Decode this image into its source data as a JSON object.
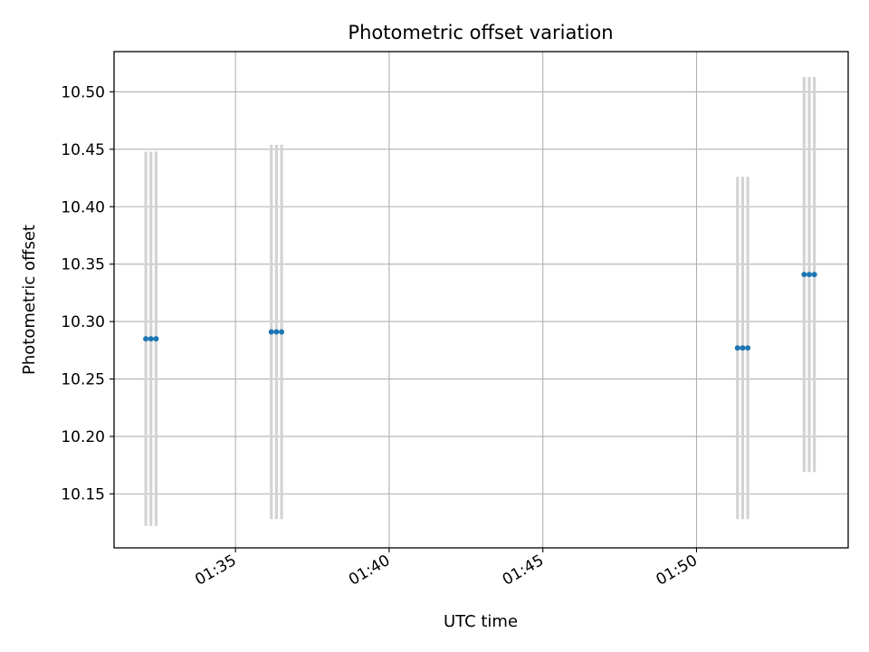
{
  "chart_data": {
    "type": "scatter",
    "title": "Photometric offset variation",
    "xlabel": "UTC time",
    "ylabel": "Photometric offset",
    "grid": true,
    "x_ticks": [
      "01:35",
      "01:40",
      "01:45",
      "01:50"
    ],
    "y_ticks": [
      "10.15",
      "10.20",
      "10.25",
      "10.30",
      "10.35",
      "10.40",
      "10.45",
      "10.50"
    ],
    "xlim": [
      "01:31:03",
      "01:54:56"
    ],
    "ylim": [
      10.103,
      10.535
    ],
    "series": [
      {
        "points": [
          {
            "x": "01:32:05",
            "y": 10.285,
            "err": 0.163
          },
          {
            "x": "01:32:15",
            "y": 10.285,
            "err": 0.163
          },
          {
            "x": "01:32:25",
            "y": 10.285,
            "err": 0.163
          },
          {
            "x": "01:36:10",
            "y": 10.291,
            "err": 0.163
          },
          {
            "x": "01:36:20",
            "y": 10.291,
            "err": 0.163
          },
          {
            "x": "01:36:30",
            "y": 10.291,
            "err": 0.163
          },
          {
            "x": "01:51:20",
            "y": 10.277,
            "err": 0.149
          },
          {
            "x": "01:51:30",
            "y": 10.277,
            "err": 0.149
          },
          {
            "x": "01:51:40",
            "y": 10.277,
            "err": 0.149
          },
          {
            "x": "01:53:30",
            "y": 10.341,
            "err": 0.172
          },
          {
            "x": "01:53:40",
            "y": 10.341,
            "err": 0.172
          },
          {
            "x": "01:53:50",
            "y": 10.341,
            "err": 0.172
          }
        ]
      }
    ],
    "colors": {
      "marker": "#1f77b4",
      "errorbar": "#d3d3d3",
      "grid": "#b0b0b0",
      "axes": "#000000"
    }
  }
}
